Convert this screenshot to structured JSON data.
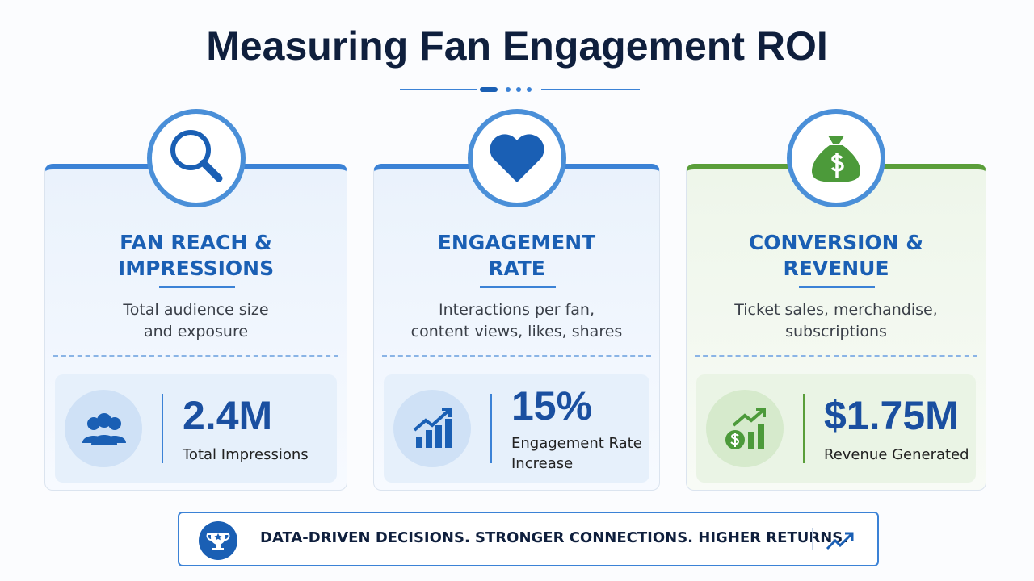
{
  "header": {
    "title": "Measuring Fan Engagement ROI"
  },
  "cards": [
    {
      "title": [
        "FAN REACH &",
        "IMPRESSIONS"
      ],
      "description": [
        "Total audience size",
        "and exposure"
      ],
      "metric": {
        "value": "2.4M",
        "label": [
          "Total Impressions"
        ]
      }
    },
    {
      "title": [
        "ENGAGEMENT",
        "RATE"
      ],
      "description": [
        "Interactions per fan,",
        "content views, likes, shares"
      ],
      "metric": {
        "value": "15%",
        "label": [
          "Engagement Rate",
          "Increase"
        ]
      }
    },
    {
      "title": [
        "CONVERSION &",
        "REVENUE"
      ],
      "description": [
        "Ticket sales, merchandise,",
        "subscriptions"
      ],
      "metric": {
        "value": "$1.75M",
        "label": [
          "Revenue Generated"
        ]
      }
    }
  ],
  "footer": {
    "text": "DATA-DRIVEN DECISIONS. STRONGER CONNECTIONS. HIGHER RETURNS."
  }
}
